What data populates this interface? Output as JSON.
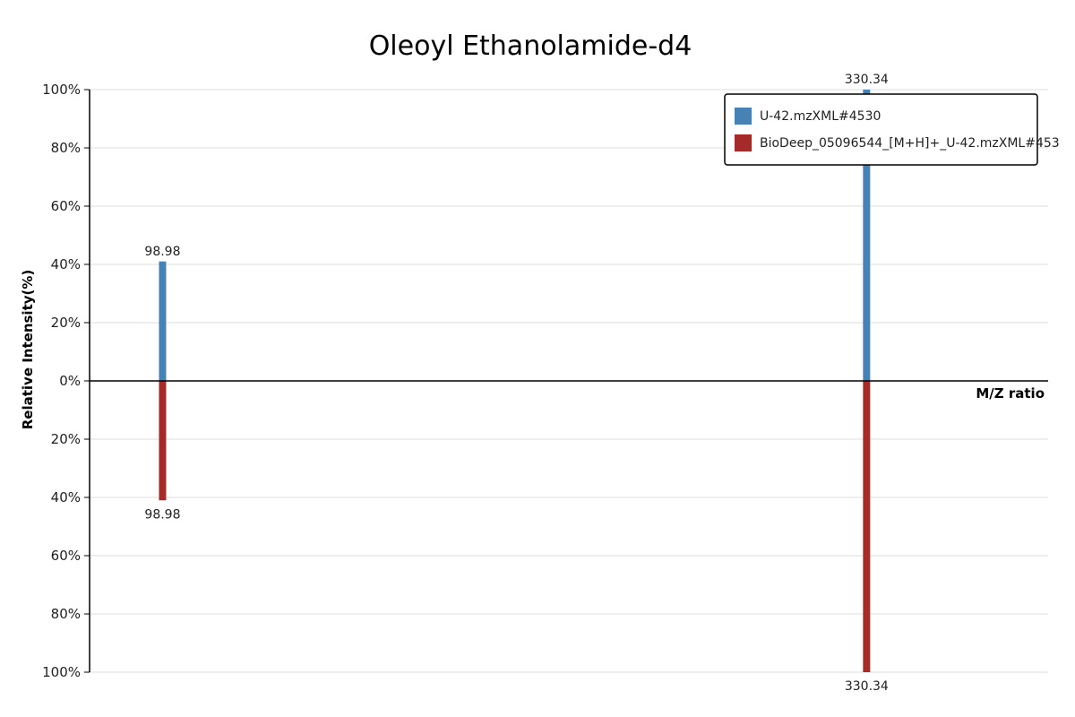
{
  "chart_data": {
    "type": "bar",
    "title": "Oleoyl Ethanolamide-d4",
    "xlabel": "M/Z ratio",
    "ylabel": "Relative Intensity(%)",
    "ylim": [
      -100,
      100
    ],
    "xlim": [
      75,
      390
    ],
    "y_ticks": [
      {
        "value": 100,
        "label": "100%"
      },
      {
        "value": 80,
        "label": "80%"
      },
      {
        "value": 60,
        "label": "60%"
      },
      {
        "value": 40,
        "label": "40%"
      },
      {
        "value": 20,
        "label": "20%"
      },
      {
        "value": 0,
        "label": "0%"
      },
      {
        "value": -20,
        "label": "20%"
      },
      {
        "value": -40,
        "label": "40%"
      },
      {
        "value": -60,
        "label": "60%"
      },
      {
        "value": -80,
        "label": "80%"
      },
      {
        "value": -100,
        "label": "100%"
      }
    ],
    "grid": true,
    "legend_position": "top-right",
    "series": [
      {
        "name": "U-42.mzXML#4530",
        "color": "#4682b4",
        "direction": "up",
        "points": [
          {
            "x": 98.98,
            "y": 41,
            "label": "98.98"
          },
          {
            "x": 330.34,
            "y": 100,
            "label": "330.34"
          }
        ]
      },
      {
        "name": "BioDeep_05096544_[M+H]+_U-42.mzXML#453",
        "color": "#a52a2a",
        "direction": "down",
        "points": [
          {
            "x": 98.98,
            "y": 41,
            "label": "98.98"
          },
          {
            "x": 330.34,
            "y": 100,
            "label": "330.34"
          }
        ]
      }
    ]
  }
}
